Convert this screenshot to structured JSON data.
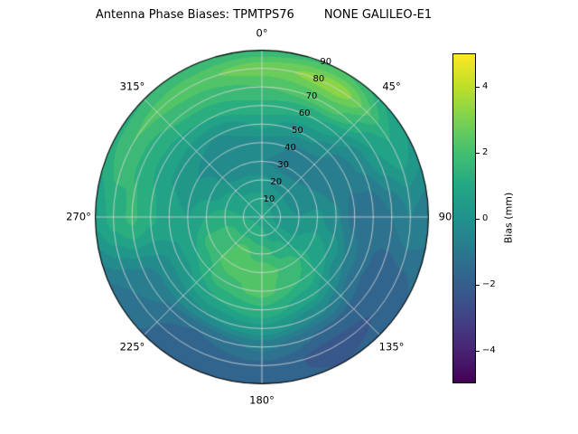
{
  "title": "Antenna Phase Biases: TPMTPS76        NONE GALILEO-E1",
  "chart_data": {
    "type": "heatmap",
    "projection": "polar",
    "description": "Filled contour polar plot of antenna phase bias versus azimuth (angular axis, 0° at top, clockwise) and zenith angle (radial axis 0–90)",
    "azimuth_deg": [
      0,
      30,
      60,
      90,
      120,
      150,
      180,
      210,
      240,
      270,
      300,
      330
    ],
    "radius_deg": [
      0,
      10,
      20,
      30,
      40,
      50,
      60,
      70,
      80,
      90
    ],
    "values_mm": [
      [
        0.8,
        0.8,
        0.8,
        0.8,
        0.8,
        0.8,
        0.8,
        0.8,
        0.8,
        0.8,
        0.8,
        0.8
      ],
      [
        0.6,
        0.4,
        0.3,
        0.3,
        0.5,
        0.8,
        1.1,
        1.3,
        1.2,
        1.0,
        0.8,
        0.7
      ],
      [
        0.1,
        -0.2,
        -0.3,
        0.0,
        0.5,
        1.2,
        1.8,
        2.1,
        1.8,
        1.2,
        0.6,
        0.2
      ],
      [
        -0.5,
        -0.7,
        -0.5,
        0.1,
        0.8,
        1.8,
        2.3,
        2.3,
        1.8,
        1.0,
        0.2,
        -0.5
      ],
      [
        -0.2,
        -0.6,
        -0.8,
        -0.4,
        0.5,
        1.5,
        2.2,
        1.8,
        1.0,
        0.5,
        0.0,
        -0.5
      ],
      [
        0.6,
        0.1,
        -0.8,
        -1.2,
        -0.5,
        0.7,
        1.4,
        1.0,
        0.3,
        0.7,
        0.4,
        0.0
      ],
      [
        1.4,
        1.0,
        -0.3,
        -1.5,
        -1.4,
        -0.4,
        0.4,
        0.0,
        -0.4,
        1.1,
        0.9,
        1.0
      ],
      [
        2.0,
        2.3,
        0.5,
        -1.0,
        -2.0,
        -1.6,
        -0.9,
        -1.5,
        -0.8,
        1.6,
        1.4,
        1.7
      ],
      [
        2.8,
        3.3,
        1.0,
        -0.5,
        -1.8,
        -2.3,
        -1.6,
        -1.9,
        -1.0,
        1.2,
        2.0,
        2.3
      ],
      [
        1.6,
        2.0,
        0.5,
        -0.8,
        -1.5,
        -2.0,
        -1.8,
        -2.0,
        -1.2,
        0.6,
        1.4,
        1.6
      ]
    ],
    "contour_step_mm": 0.5,
    "angular_ticks": [
      {
        "angle_deg": 0,
        "label": "0°"
      },
      {
        "angle_deg": 45,
        "label": "45°"
      },
      {
        "angle_deg": 90,
        "label": "90"
      },
      {
        "angle_deg": 135,
        "label": "135°"
      },
      {
        "angle_deg": 180,
        "label": "180°"
      },
      {
        "angle_deg": 225,
        "label": "225°"
      },
      {
        "angle_deg": 270,
        "label": "270°"
      },
      {
        "angle_deg": 315,
        "label": "315°"
      }
    ],
    "radial_ticks": {
      "azimuth_deg": 22.5,
      "values": [
        10,
        20,
        30,
        40,
        50,
        60,
        70,
        80,
        90
      ],
      "labels": [
        "10",
        "20",
        "30",
        "40",
        "50",
        "60",
        "70",
        "80",
        "90"
      ]
    },
    "colorbar": {
      "label": "Bias (mm)",
      "vmin": -5,
      "vmax": 5,
      "ticks": [
        {
          "value": 4,
          "label": "4"
        },
        {
          "value": 2,
          "label": "2"
        },
        {
          "value": 0,
          "label": "0"
        },
        {
          "value": -2,
          "label": "−2"
        },
        {
          "value": -4,
          "label": "−4"
        }
      ]
    },
    "colormap": {
      "name": "viridis",
      "stops": [
        "#440154",
        "#482475",
        "#414487",
        "#355f8d",
        "#2a788e",
        "#21918c",
        "#22a884",
        "#44bf70",
        "#7ad151",
        "#bddf26",
        "#fde725"
      ]
    },
    "grid": {
      "rings_every_deg": 10,
      "spokes_every_deg": 45,
      "grid_color": "#d9d9d9"
    }
  }
}
